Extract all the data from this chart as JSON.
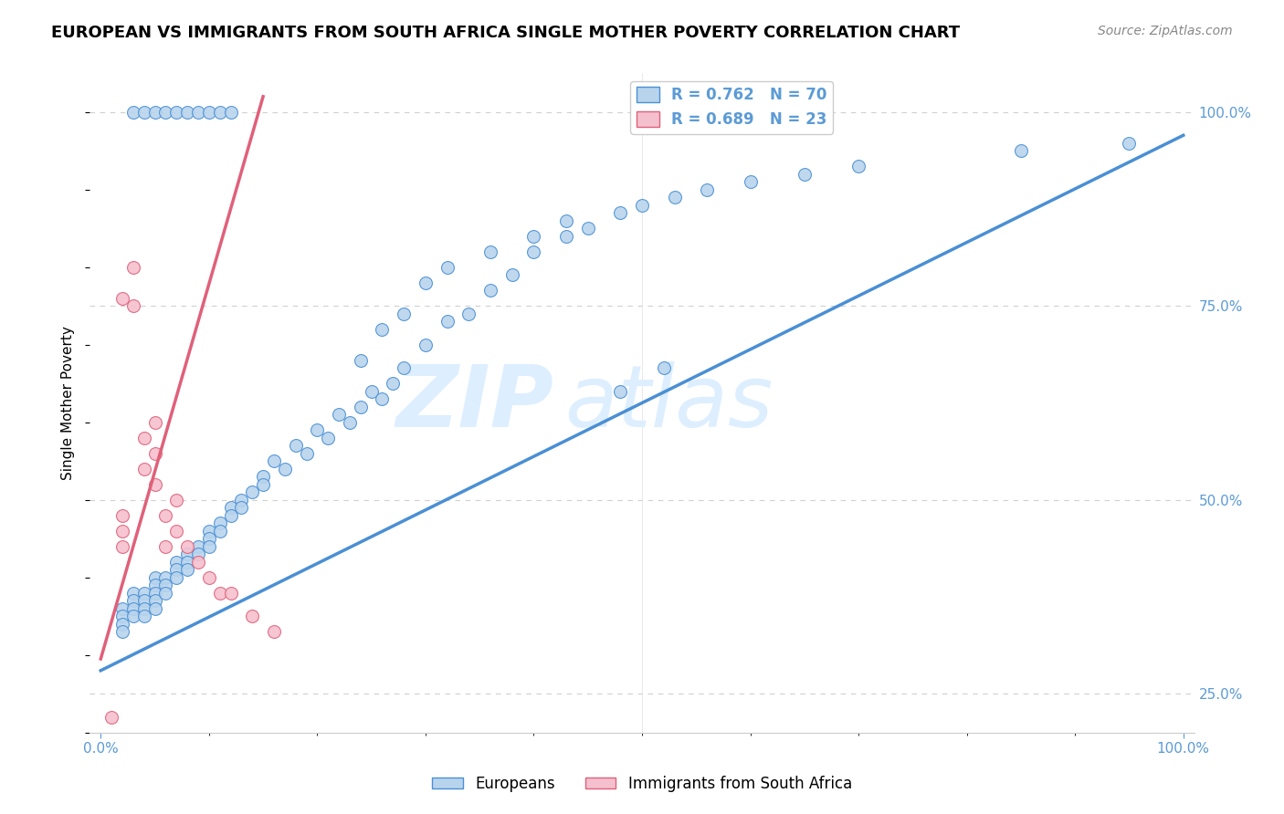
{
  "title": "EUROPEAN VS IMMIGRANTS FROM SOUTH AFRICA SINGLE MOTHER POVERTY CORRELATION CHART",
  "source": "Source: ZipAtlas.com",
  "ylabel": "Single Mother Poverty",
  "xlim": [
    0.0,
    0.1
  ],
  "ylim": [
    0.2,
    1.05
  ],
  "xticks": [
    0.0,
    0.02,
    0.04,
    0.06,
    0.08,
    0.1
  ],
  "xticklabels": [
    "0.0%",
    "",
    "",
    "",
    "",
    ""
  ],
  "right_yticks": [
    0.25,
    0.5,
    0.75,
    1.0
  ],
  "right_yticklabels": [
    "25.0%",
    "50.0%",
    "75.0%",
    "100.0%"
  ],
  "legend_label1": "R = 0.762   N = 70",
  "legend_label2": "R = 0.689   N = 23",
  "dot_color1": "#b8d4ed",
  "dot_color2": "#f5c0ce",
  "line_color1": "#4a8fd4",
  "line_color2": "#e0607a",
  "watermark": "ZIPatlas",
  "watermark_color": "#ddeeff",
  "bottom_label_eu": "Europeans",
  "bottom_label_sa": "Immigrants from South Africa",
  "eu_x": [
    0.002,
    0.002,
    0.002,
    0.002,
    0.003,
    0.003,
    0.003,
    0.003,
    0.004,
    0.004,
    0.004,
    0.004,
    0.005,
    0.005,
    0.005,
    0.005,
    0.005,
    0.006,
    0.006,
    0.006,
    0.007,
    0.007,
    0.007,
    0.008,
    0.008,
    0.008,
    0.009,
    0.009,
    0.01,
    0.01,
    0.01,
    0.011,
    0.011,
    0.012,
    0.012,
    0.013,
    0.013,
    0.014,
    0.015,
    0.015,
    0.016,
    0.017,
    0.018,
    0.019,
    0.02,
    0.021,
    0.022,
    0.023,
    0.024,
    0.025,
    0.026,
    0.027,
    0.028,
    0.03,
    0.032,
    0.034,
    0.036,
    0.038,
    0.04,
    0.043,
    0.045,
    0.048,
    0.05,
    0.053,
    0.056,
    0.06,
    0.065,
    0.07,
    0.085,
    0.095
  ],
  "eu_y": [
    0.36,
    0.35,
    0.34,
    0.33,
    0.38,
    0.37,
    0.36,
    0.35,
    0.38,
    0.37,
    0.36,
    0.35,
    0.4,
    0.39,
    0.38,
    0.37,
    0.36,
    0.4,
    0.39,
    0.38,
    0.42,
    0.41,
    0.4,
    0.43,
    0.42,
    0.41,
    0.44,
    0.43,
    0.46,
    0.45,
    0.44,
    0.47,
    0.46,
    0.49,
    0.48,
    0.5,
    0.49,
    0.51,
    0.53,
    0.52,
    0.55,
    0.54,
    0.57,
    0.56,
    0.59,
    0.58,
    0.61,
    0.6,
    0.62,
    0.64,
    0.63,
    0.65,
    0.67,
    0.7,
    0.73,
    0.74,
    0.77,
    0.79,
    0.82,
    0.84,
    0.85,
    0.87,
    0.88,
    0.89,
    0.9,
    0.91,
    0.92,
    0.93,
    0.95,
    0.96
  ],
  "eu_x_top": [
    0.003,
    0.004,
    0.005,
    0.006,
    0.007,
    0.008,
    0.009,
    0.01,
    0.011,
    0.012,
    0.055
  ],
  "eu_y_top": [
    1.0,
    1.0,
    1.0,
    1.0,
    1.0,
    1.0,
    1.0,
    1.0,
    1.0,
    1.0,
    1.0
  ],
  "eu_x_extra": [
    0.024,
    0.026,
    0.028,
    0.03,
    0.032,
    0.036,
    0.04,
    0.043,
    0.048,
    0.052
  ],
  "eu_y_extra": [
    0.68,
    0.72,
    0.74,
    0.78,
    0.8,
    0.82,
    0.84,
    0.86,
    0.64,
    0.67
  ],
  "sa_x": [
    0.001,
    0.002,
    0.002,
    0.002,
    0.003,
    0.003,
    0.004,
    0.004,
    0.005,
    0.005,
    0.005,
    0.006,
    0.006,
    0.007,
    0.007,
    0.008,
    0.009,
    0.01,
    0.011,
    0.012,
    0.014,
    0.016,
    0.002
  ],
  "sa_y": [
    0.22,
    0.48,
    0.46,
    0.44,
    0.8,
    0.75,
    0.58,
    0.54,
    0.6,
    0.56,
    0.52,
    0.48,
    0.44,
    0.5,
    0.46,
    0.44,
    0.42,
    0.4,
    0.38,
    0.38,
    0.35,
    0.33,
    0.76
  ],
  "eu_line_x": [
    0.0,
    0.1
  ],
  "eu_line_y": [
    0.28,
    0.97
  ],
  "sa_line_x": [
    0.0,
    0.015
  ],
  "sa_line_y": [
    0.295,
    1.02
  ]
}
